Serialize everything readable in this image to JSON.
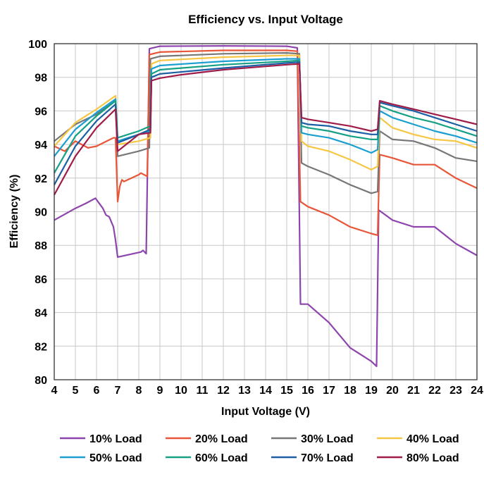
{
  "chart_data": {
    "type": "line",
    "title": "Efficiency vs. Input Voltage",
    "xlabel": "Input Voltage (V)",
    "ylabel": "Efficiency (%)",
    "xlim": [
      4,
      24
    ],
    "ylim": [
      80,
      100
    ],
    "xticks": [
      4,
      5,
      6,
      7,
      8,
      9,
      10,
      11,
      12,
      13,
      14,
      15,
      16,
      17,
      18,
      19,
      20,
      21,
      22,
      23,
      24
    ],
    "yticks": [
      80,
      82,
      84,
      86,
      88,
      90,
      92,
      94,
      96,
      98,
      100
    ],
    "grid": true,
    "legend_position": "bottom",
    "series": [
      {
        "name": "10% Load",
        "color": "#8e44ad",
        "points": [
          [
            4,
            89.5
          ],
          [
            5,
            90.2
          ],
          [
            5.5,
            90.5
          ],
          [
            5.95,
            90.8
          ],
          [
            6.3,
            90.2
          ],
          [
            6.45,
            89.8
          ],
          [
            6.6,
            89.7
          ],
          [
            6.8,
            89.1
          ],
          [
            6.9,
            88.3
          ],
          [
            7.0,
            87.3
          ],
          [
            8.1,
            87.6
          ],
          [
            8.2,
            87.7
          ],
          [
            8.35,
            87.5
          ],
          [
            8.5,
            99.7
          ],
          [
            9,
            99.85
          ],
          [
            12,
            99.87
          ],
          [
            15,
            99.85
          ],
          [
            15.5,
            99.75
          ],
          [
            15.65,
            84.5
          ],
          [
            16,
            84.5
          ],
          [
            17,
            83.4
          ],
          [
            18,
            81.9
          ],
          [
            19,
            81.1
          ],
          [
            19.25,
            80.8
          ],
          [
            19.35,
            90.1
          ],
          [
            20,
            89.5
          ],
          [
            21,
            89.1
          ],
          [
            22,
            89.1
          ],
          [
            23,
            88.1
          ],
          [
            24,
            87.4
          ]
        ]
      },
      {
        "name": "20% Load",
        "color": "#e8563a",
        "points": [
          [
            4,
            93.9
          ],
          [
            4.5,
            93.6
          ],
          [
            5,
            94.2
          ],
          [
            5.3,
            94.0
          ],
          [
            5.6,
            93.8
          ],
          [
            6,
            93.9
          ],
          [
            6.8,
            94.4
          ],
          [
            6.9,
            94.4
          ],
          [
            7.0,
            90.6
          ],
          [
            7.1,
            91.5
          ],
          [
            7.2,
            91.9
          ],
          [
            7.3,
            91.8
          ],
          [
            8,
            92.2
          ],
          [
            8.1,
            92.3
          ],
          [
            8.4,
            92.1
          ],
          [
            8.5,
            99.35
          ],
          [
            9,
            99.5
          ],
          [
            12,
            99.6
          ],
          [
            15,
            99.6
          ],
          [
            15.5,
            99.55
          ],
          [
            15.65,
            90.6
          ],
          [
            16,
            90.3
          ],
          [
            17,
            89.8
          ],
          [
            18,
            89.1
          ],
          [
            19,
            88.7
          ],
          [
            19.3,
            88.6
          ],
          [
            19.4,
            93.4
          ],
          [
            20,
            93.2
          ],
          [
            21,
            92.8
          ],
          [
            22,
            92.8
          ],
          [
            23,
            92.0
          ],
          [
            24,
            91.4
          ]
        ]
      },
      {
        "name": "30% Load",
        "color": "#777777",
        "points": [
          [
            4,
            94.2
          ],
          [
            5,
            95.2
          ],
          [
            6,
            95.8
          ],
          [
            6.9,
            96.6
          ],
          [
            7.0,
            93.3
          ],
          [
            8,
            93.6
          ],
          [
            8.5,
            93.8
          ],
          [
            8.55,
            99.1
          ],
          [
            9,
            99.25
          ],
          [
            12,
            99.4
          ],
          [
            15,
            99.45
          ],
          [
            15.6,
            99.4
          ],
          [
            15.7,
            92.9
          ],
          [
            16,
            92.7
          ],
          [
            17,
            92.2
          ],
          [
            18,
            91.6
          ],
          [
            19,
            91.1
          ],
          [
            19.3,
            91.2
          ],
          [
            19.4,
            94.8
          ],
          [
            20,
            94.3
          ],
          [
            21,
            94.2
          ],
          [
            22,
            93.8
          ],
          [
            23,
            93.2
          ],
          [
            24,
            93.0
          ]
        ]
      },
      {
        "name": "40% Load",
        "color": "#f6c744",
        "points": [
          [
            4,
            93.9
          ],
          [
            5,
            95.3
          ],
          [
            6,
            96.1
          ],
          [
            6.9,
            96.9
          ],
          [
            7.0,
            94.0
          ],
          [
            8,
            94.2
          ],
          [
            8.55,
            94.4
          ],
          [
            8.6,
            98.8
          ],
          [
            9,
            99.0
          ],
          [
            12,
            99.2
          ],
          [
            15,
            99.3
          ],
          [
            15.6,
            99.3
          ],
          [
            15.7,
            94.2
          ],
          [
            16,
            93.9
          ],
          [
            17,
            93.6
          ],
          [
            18,
            93.1
          ],
          [
            19,
            92.5
          ],
          [
            19.3,
            92.7
          ],
          [
            19.4,
            95.6
          ],
          [
            20,
            95.0
          ],
          [
            21,
            94.6
          ],
          [
            22,
            94.3
          ],
          [
            23,
            94.2
          ],
          [
            24,
            93.8
          ]
        ]
      },
      {
        "name": "50% Load",
        "color": "#1a9fd0",
        "points": [
          [
            4,
            93.3
          ],
          [
            5,
            94.9
          ],
          [
            6,
            95.9
          ],
          [
            6.9,
            96.7
          ],
          [
            7.0,
            94.2
          ],
          [
            8,
            94.6
          ],
          [
            8.55,
            94.8
          ],
          [
            8.6,
            98.5
          ],
          [
            9,
            98.7
          ],
          [
            12,
            98.95
          ],
          [
            15,
            99.1
          ],
          [
            15.6,
            99.1
          ],
          [
            15.7,
            94.7
          ],
          [
            16,
            94.6
          ],
          [
            17,
            94.4
          ],
          [
            18,
            94.0
          ],
          [
            19,
            93.5
          ],
          [
            19.3,
            93.7
          ],
          [
            19.4,
            96.0
          ],
          [
            20,
            95.6
          ],
          [
            21,
            95.2
          ],
          [
            22,
            94.8
          ],
          [
            23,
            94.5
          ],
          [
            24,
            94.1
          ]
        ]
      },
      {
        "name": "60% Load",
        "color": "#16a085",
        "points": [
          [
            4,
            92.3
          ],
          [
            5,
            94.5
          ],
          [
            6,
            95.7
          ],
          [
            6.9,
            96.6
          ],
          [
            7.0,
            94.4
          ],
          [
            8,
            94.8
          ],
          [
            8.55,
            95.1
          ],
          [
            8.6,
            98.2
          ],
          [
            9,
            98.45
          ],
          [
            12,
            98.75
          ],
          [
            15,
            98.95
          ],
          [
            15.6,
            99.0
          ],
          [
            15.7,
            95.1
          ],
          [
            16,
            95.0
          ],
          [
            17,
            94.8
          ],
          [
            18,
            94.5
          ],
          [
            19,
            94.3
          ],
          [
            19.3,
            94.3
          ],
          [
            19.4,
            96.3
          ],
          [
            20,
            96.0
          ],
          [
            21,
            95.6
          ],
          [
            22,
            95.3
          ],
          [
            23,
            94.9
          ],
          [
            24,
            94.5
          ]
        ]
      },
      {
        "name": "70% Load",
        "color": "#1d5fa5",
        "points": [
          [
            4,
            91.6
          ],
          [
            5,
            93.9
          ],
          [
            6,
            95.4
          ],
          [
            6.9,
            96.4
          ],
          [
            7.0,
            94.1
          ],
          [
            8,
            94.6
          ],
          [
            8.55,
            94.9
          ],
          [
            8.6,
            98.0
          ],
          [
            9,
            98.2
          ],
          [
            12,
            98.55
          ],
          [
            15,
            98.85
          ],
          [
            15.6,
            98.9
          ],
          [
            15.7,
            95.3
          ],
          [
            16,
            95.2
          ],
          [
            17,
            95.1
          ],
          [
            18,
            94.8
          ],
          [
            19,
            94.6
          ],
          [
            19.3,
            94.6
          ],
          [
            19.4,
            96.5
          ],
          [
            20,
            96.3
          ],
          [
            21,
            96.0
          ],
          [
            22,
            95.6
          ],
          [
            23,
            95.2
          ],
          [
            24,
            94.8
          ]
        ]
      },
      {
        "name": "80% Load",
        "color": "#a01c48",
        "points": [
          [
            4,
            91.0
          ],
          [
            5,
            93.3
          ],
          [
            6,
            95.0
          ],
          [
            6.9,
            96.1
          ],
          [
            7.0,
            93.6
          ],
          [
            8,
            94.6
          ],
          [
            8.55,
            94.7
          ],
          [
            8.6,
            97.8
          ],
          [
            9,
            97.95
          ],
          [
            10,
            98.15
          ],
          [
            12,
            98.45
          ],
          [
            15,
            98.75
          ],
          [
            15.6,
            98.8
          ],
          [
            15.7,
            95.6
          ],
          [
            16,
            95.5
          ],
          [
            17,
            95.3
          ],
          [
            18,
            95.1
          ],
          [
            19,
            94.8
          ],
          [
            19.3,
            94.9
          ],
          [
            19.4,
            96.6
          ],
          [
            20,
            96.4
          ],
          [
            21,
            96.1
          ],
          [
            22,
            95.8
          ],
          [
            23,
            95.5
          ],
          [
            24,
            95.2
          ]
        ]
      }
    ]
  }
}
